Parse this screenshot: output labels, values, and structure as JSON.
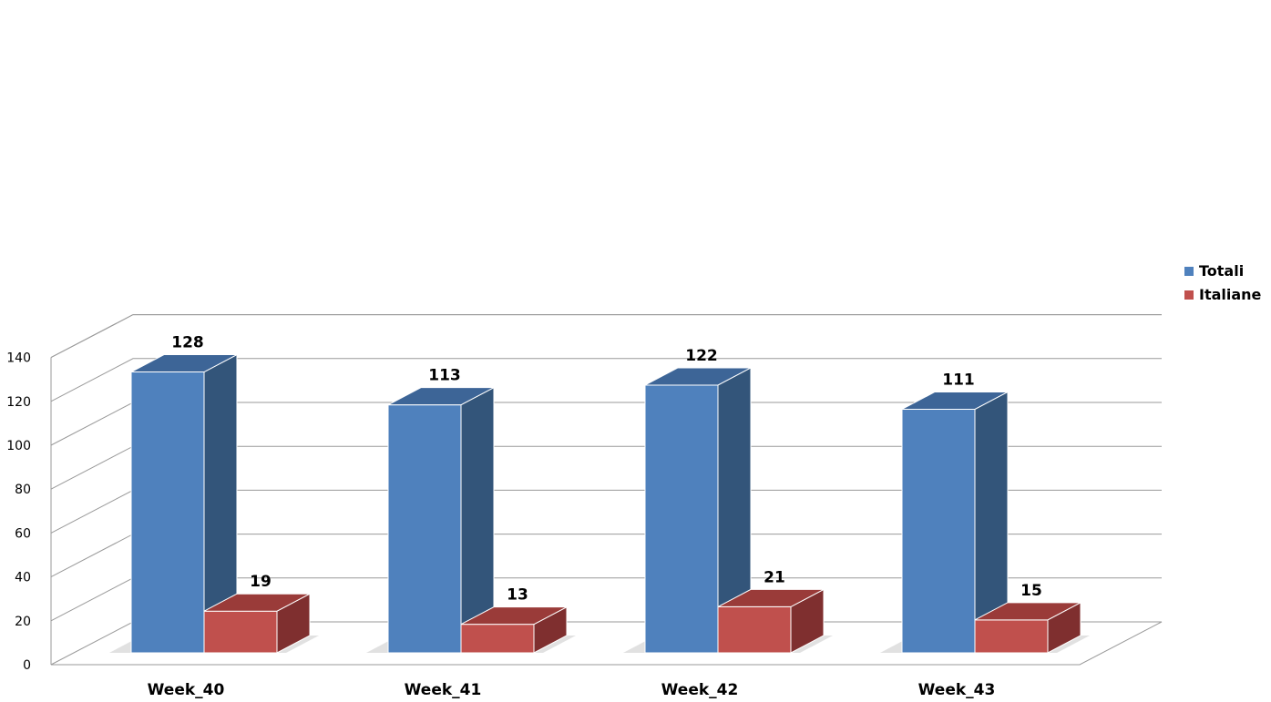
{
  "chart_data": {
    "type": "bar",
    "categories": [
      "Week_40",
      "Week_41",
      "Week_42",
      "Week_43"
    ],
    "series": [
      {
        "name": "Totali",
        "values": [
          128,
          113,
          122,
          111
        ],
        "color": "#4f81bd",
        "side_color": "#33557a",
        "top_color": "#3d6597"
      },
      {
        "name": "Italiane",
        "values": [
          19,
          13,
          21,
          15
        ],
        "color": "#c0504d",
        "side_color": "#7f2f2f",
        "top_color": "#9a3b39"
      }
    ],
    "y_ticks": [
      "0",
      "20",
      "40",
      "60",
      "80",
      "100",
      "120",
      "140"
    ],
    "ylim": [
      0,
      140
    ],
    "grid": true,
    "legend_position": "right",
    "three_d": true
  }
}
